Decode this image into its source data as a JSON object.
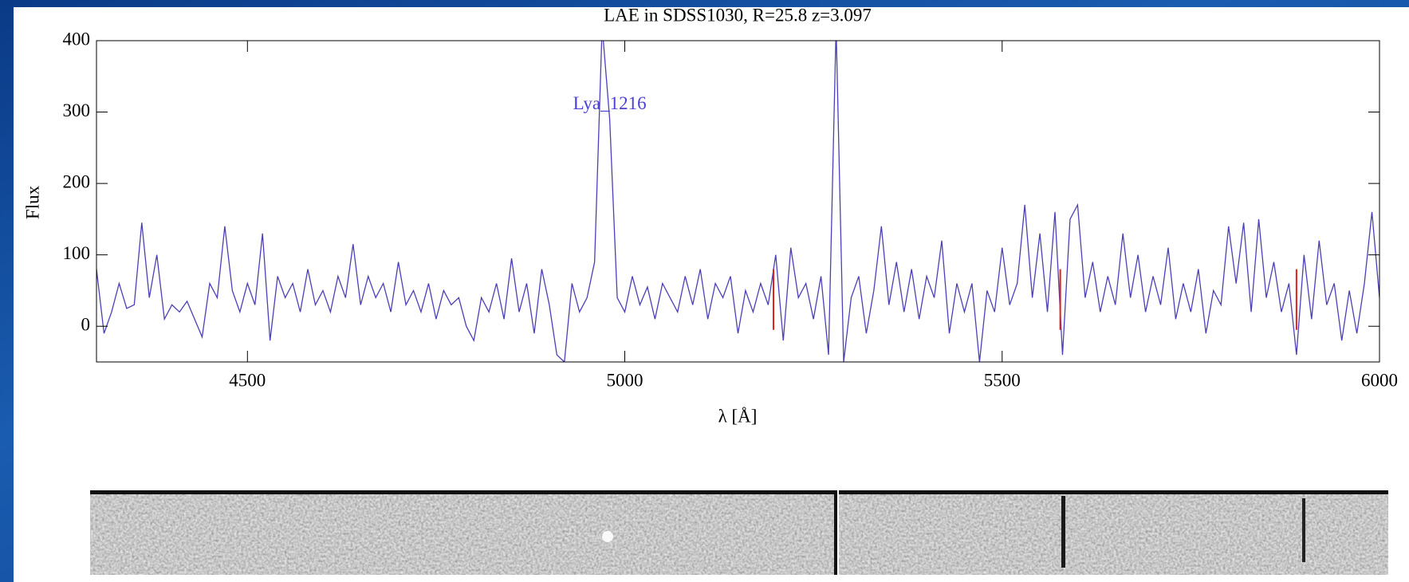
{
  "chart_data": {
    "type": "line",
    "title": "LAE in SDSS1030, R=25.8 z=3.097",
    "xlabel": "λ [Å]",
    "ylabel": "Flux",
    "xlim": [
      4300,
      6000
    ],
    "xticks": [
      4500,
      5000,
      5500,
      6000
    ],
    "ylim": [
      -50,
      400
    ],
    "yticks": [
      0,
      100,
      200,
      300,
      400
    ],
    "color": "#4b3fb8",
    "x": [
      4300,
      4310,
      4320,
      4330,
      4340,
      4350,
      4360,
      4370,
      4380,
      4390,
      4400,
      4410,
      4420,
      4430,
      4440,
      4450,
      4460,
      4470,
      4480,
      4490,
      4500,
      4510,
      4520,
      4530,
      4540,
      4550,
      4560,
      4570,
      4580,
      4590,
      4600,
      4610,
      4620,
      4630,
      4640,
      4650,
      4660,
      4670,
      4680,
      4690,
      4700,
      4710,
      4720,
      4730,
      4740,
      4750,
      4760,
      4770,
      4780,
      4790,
      4800,
      4810,
      4820,
      4830,
      4840,
      4850,
      4860,
      4870,
      4880,
      4890,
      4900,
      4910,
      4920,
      4930,
      4940,
      4950,
      4960,
      4970,
      4980,
      4990,
      5000,
      5010,
      5020,
      5030,
      5040,
      5050,
      5060,
      5070,
      5080,
      5090,
      5100,
      5110,
      5120,
      5130,
      5140,
      5150,
      5160,
      5170,
      5180,
      5190,
      5200,
      5210,
      5220,
      5230,
      5240,
      5250,
      5260,
      5270,
      5280,
      5290,
      5300,
      5310,
      5320,
      5330,
      5340,
      5350,
      5360,
      5370,
      5380,
      5390,
      5400,
      5410,
      5420,
      5430,
      5440,
      5450,
      5460,
      5470,
      5480,
      5490,
      5500,
      5510,
      5520,
      5530,
      5540,
      5550,
      5560,
      5570,
      5580,
      5590,
      5600,
      5610,
      5620,
      5630,
      5640,
      5650,
      5660,
      5670,
      5680,
      5690,
      5700,
      5710,
      5720,
      5730,
      5740,
      5750,
      5760,
      5770,
      5780,
      5790,
      5800,
      5810,
      5820,
      5830,
      5840,
      5850,
      5860,
      5870,
      5880,
      5890,
      5900,
      5910,
      5920,
      5930,
      5940,
      5950,
      5960,
      5970,
      5980,
      5990,
      6000
    ],
    "values": [
      80,
      -10,
      20,
      60,
      25,
      30,
      145,
      40,
      100,
      10,
      30,
      20,
      35,
      10,
      -15,
      60,
      40,
      140,
      50,
      20,
      60,
      30,
      130,
      -20,
      70,
      40,
      60,
      20,
      80,
      30,
      50,
      20,
      70,
      40,
      115,
      30,
      70,
      40,
      60,
      20,
      90,
      30,
      50,
      20,
      60,
      10,
      50,
      30,
      40,
      0,
      -20,
      40,
      20,
      60,
      10,
      95,
      20,
      60,
      -10,
      80,
      30,
      -40,
      -50,
      60,
      20,
      40,
      90,
      420,
      290,
      40,
      20,
      70,
      30,
      55,
      10,
      60,
      40,
      20,
      70,
      30,
      80,
      10,
      60,
      40,
      70,
      -10,
      50,
      20,
      60,
      30,
      100,
      -20,
      110,
      40,
      60,
      10,
      70,
      -40,
      420,
      -50,
      40,
      70,
      -10,
      50,
      140,
      30,
      90,
      20,
      80,
      10,
      70,
      40,
      120,
      -10,
      60,
      20,
      60,
      -50,
      50,
      20,
      110,
      30,
      60,
      170,
      40,
      130,
      20,
      160,
      -40,
      150,
      170,
      40,
      90,
      20,
      70,
      30,
      130,
      40,
      100,
      20,
      70,
      30,
      110,
      10,
      60,
      20,
      80,
      -10,
      50,
      30,
      140,
      60,
      145,
      20,
      150,
      40,
      90,
      20,
      60,
      -40,
      100,
      10,
      120,
      30,
      60,
      -20,
      50,
      -10,
      60,
      160,
      40
    ],
    "sky_lines": {
      "x": [
        5197,
        5577,
        5890
      ],
      "ymin": -5,
      "ymax": 80,
      "color": "#e0201a"
    },
    "annotation": {
      "text": "Lya_1216",
      "x": 4980,
      "y": 310,
      "color": "#4b3fd6"
    }
  }
}
